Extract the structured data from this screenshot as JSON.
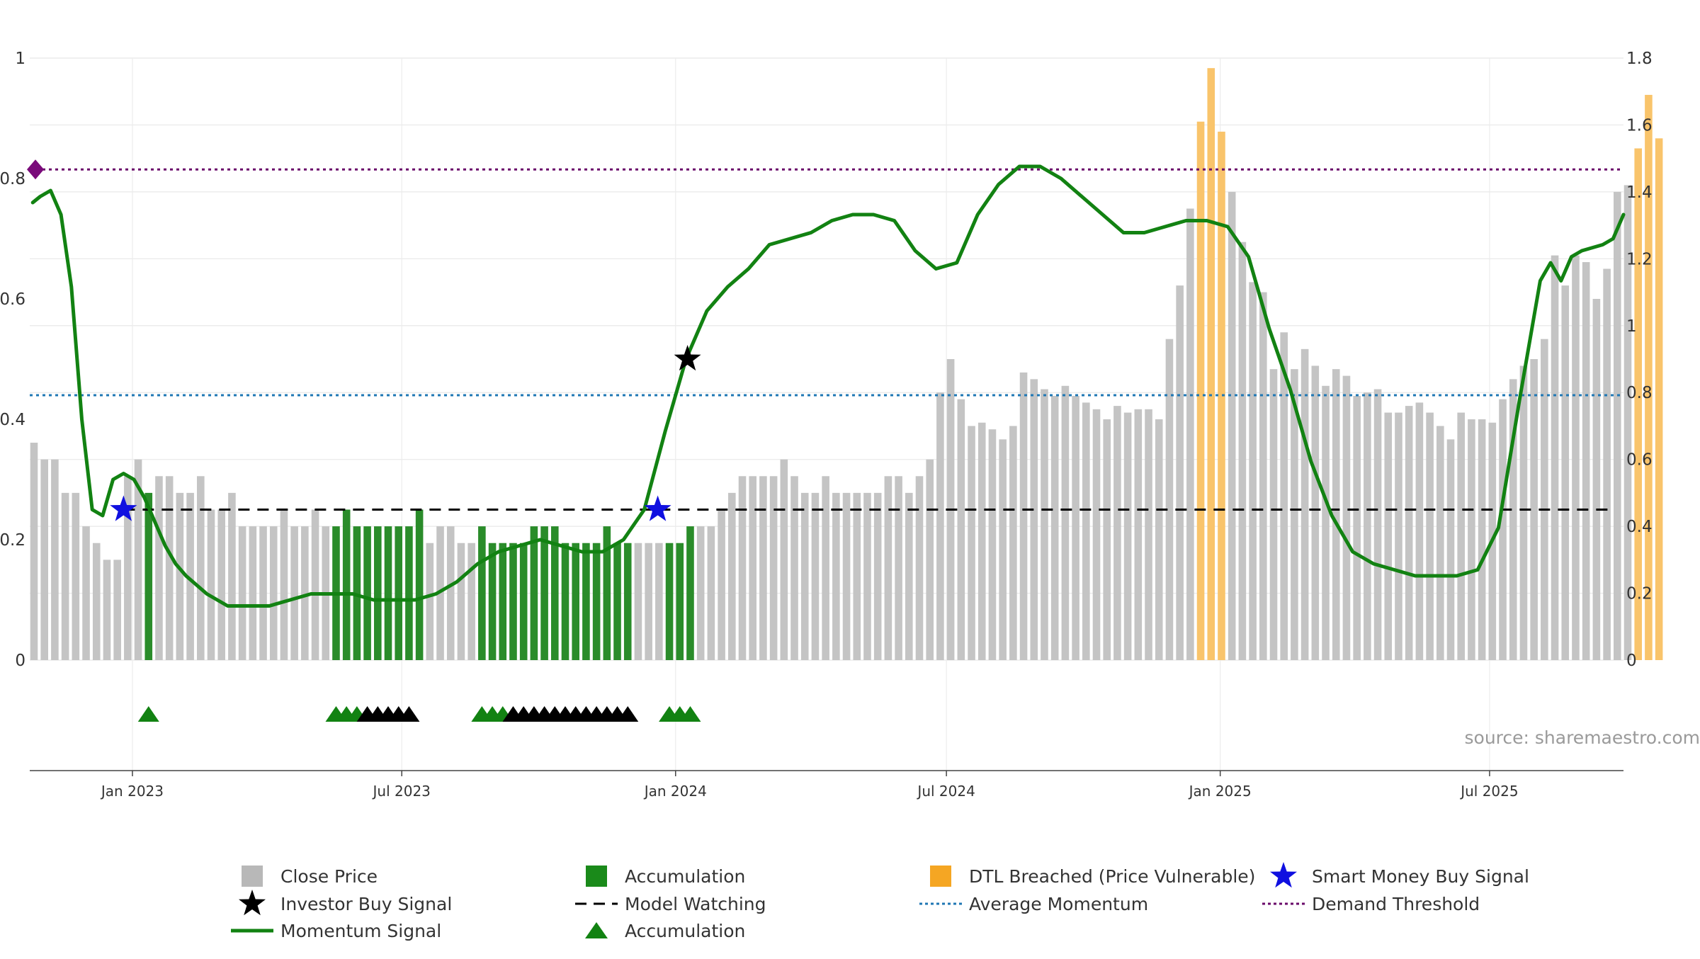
{
  "chart_data": {
    "type": "bar+line",
    "title": "",
    "source": "source: sharemaestro.com",
    "left_axis": {
      "ylim": [
        0,
        1
      ],
      "ticks": [
        0,
        0.2,
        0.4,
        0.6,
        0.8,
        1
      ],
      "tick_labels": [
        "0",
        "0.2",
        "0.4",
        "0.6",
        "0.8",
        "1"
      ]
    },
    "right_axis": {
      "ylim": [
        0,
        1.8
      ],
      "ticks": [
        0,
        0.2,
        0.4,
        0.6,
        0.8,
        1,
        1.2,
        1.4,
        1.6,
        1.8
      ],
      "tick_labels": [
        "0",
        "0.2",
        "0.4",
        "0.6",
        "0.8",
        "1",
        "1.2",
        "1.4",
        "1.6",
        "1.8"
      ]
    },
    "x_axis": {
      "start": "2022-10-24",
      "end": "2025-09-29",
      "tick_dates": [
        "2023-01-01",
        "2023-07-01",
        "2024-01-01",
        "2024-07-01",
        "2025-01-01",
        "2025-07-01"
      ],
      "tick_labels": [
        "Jan 2023",
        "Jul 2023",
        "Jan 2024",
        "Jul 2024",
        "Jan 2025",
        "Jul 2025"
      ]
    },
    "bar_start": "2022-10-24",
    "bar_interval_days": 7,
    "close_price": [
      0.65,
      0.6,
      0.6,
      0.5,
      0.5,
      0.4,
      0.35,
      0.3,
      0.3,
      0.55,
      0.6,
      0.5,
      0.55,
      0.55,
      0.5,
      0.5,
      0.55,
      0.45,
      0.45,
      0.5,
      0.4,
      0.4,
      0.4,
      0.4,
      0.45,
      0.4,
      0.4,
      0.45,
      0.4,
      0.4,
      0.45,
      0.4,
      0.4,
      0.4,
      0.4,
      0.4,
      0.4,
      0.45,
      0.35,
      0.4,
      0.4,
      0.35,
      0.35,
      0.4,
      0.35,
      0.35,
      0.35,
      0.35,
      0.4,
      0.4,
      0.4,
      0.35,
      0.35,
      0.35,
      0.35,
      0.4,
      0.35,
      0.35,
      0.35,
      0.35,
      0.35,
      0.35,
      0.35,
      0.4,
      0.4,
      0.4,
      0.45,
      0.5,
      0.55,
      0.55,
      0.55,
      0.55,
      0.6,
      0.55,
      0.5,
      0.5,
      0.55,
      0.5,
      0.5,
      0.5,
      0.5,
      0.5,
      0.55,
      0.55,
      0.5,
      0.55,
      0.6,
      0.8,
      0.9,
      0.78,
      0.7,
      0.71,
      0.69,
      0.66,
      0.7,
      0.86,
      0.84,
      0.81,
      0.79,
      0.82,
      0.79,
      0.77,
      0.75,
      0.72,
      0.76,
      0.74,
      0.75,
      0.75,
      0.72,
      0.96,
      1.12,
      1.35,
      1.61,
      1.77,
      1.58,
      1.4,
      1.25,
      1.13,
      1.1,
      0.87,
      0.98,
      0.87,
      0.93,
      0.88,
      0.82,
      0.87,
      0.85,
      0.79,
      0.8,
      0.81,
      0.74,
      0.74,
      0.76,
      0.77,
      0.74,
      0.7,
      0.66,
      0.74,
      0.72,
      0.72,
      0.71,
      0.78,
      0.84,
      0.88,
      0.9,
      0.96,
      1.21,
      1.12,
      1.21,
      1.19,
      1.08,
      1.17,
      1.4,
      1.42,
      1.53,
      1.69,
      1.56
    ],
    "accumulation_weeks": [
      11,
      29,
      30,
      31,
      32,
      33,
      34,
      35,
      36,
      37,
      43,
      44,
      45,
      46,
      47,
      48,
      49,
      50,
      51,
      52,
      53,
      54,
      55,
      56,
      57,
      61,
      62,
      63
    ],
    "dtl_breached_weeks": [
      112,
      113,
      114,
      154,
      155,
      156
    ],
    "momentum_signal": {
      "dates": [
        "2022-10-26",
        "2022-10-31",
        "2022-11-07",
        "2022-11-14",
        "2022-11-21",
        "2022-11-28",
        "2022-12-05",
        "2022-12-12",
        "2022-12-19",
        "2022-12-26",
        "2023-01-02",
        "2023-01-09",
        "2023-01-16",
        "2023-01-23",
        "2023-01-30",
        "2023-02-06",
        "2023-02-20",
        "2023-03-06",
        "2023-03-20",
        "2023-04-03",
        "2023-04-17",
        "2023-05-01",
        "2023-05-15",
        "2023-05-29",
        "2023-06-12",
        "2023-06-26",
        "2023-07-10",
        "2023-07-24",
        "2023-08-07",
        "2023-08-21",
        "2023-09-04",
        "2023-09-18",
        "2023-10-02",
        "2023-10-16",
        "2023-10-30",
        "2023-11-13",
        "2023-11-27",
        "2023-12-11",
        "2023-12-25",
        "2024-01-08",
        "2024-01-22",
        "2024-02-05",
        "2024-02-19",
        "2024-03-04",
        "2024-03-18",
        "2024-04-01",
        "2024-04-15",
        "2024-04-29",
        "2024-05-13",
        "2024-05-27",
        "2024-06-10",
        "2024-06-24",
        "2024-07-08",
        "2024-07-22",
        "2024-08-05",
        "2024-08-19",
        "2024-09-02",
        "2024-09-16",
        "2024-09-30",
        "2024-10-14",
        "2024-10-28",
        "2024-11-11",
        "2024-11-25",
        "2024-12-09",
        "2024-12-23",
        "2025-01-06",
        "2025-01-20",
        "2025-02-03",
        "2025-02-17",
        "2025-03-03",
        "2025-03-17",
        "2025-03-31",
        "2025-04-14",
        "2025-04-28",
        "2025-05-12",
        "2025-05-26",
        "2025-06-09",
        "2025-06-23",
        "2025-07-07",
        "2025-07-21",
        "2025-08-04",
        "2025-08-11",
        "2025-08-18",
        "2025-08-25",
        "2025-09-01",
        "2025-09-15",
        "2025-09-22",
        "2025-09-29"
      ],
      "values": [
        0.76,
        0.77,
        0.78,
        0.74,
        0.62,
        0.4,
        0.25,
        0.24,
        0.3,
        0.31,
        0.3,
        0.27,
        0.23,
        0.19,
        0.16,
        0.14,
        0.11,
        0.09,
        0.09,
        0.09,
        0.1,
        0.11,
        0.11,
        0.11,
        0.1,
        0.1,
        0.1,
        0.11,
        0.13,
        0.16,
        0.18,
        0.19,
        0.2,
        0.19,
        0.18,
        0.18,
        0.2,
        0.25,
        0.38,
        0.5,
        0.58,
        0.62,
        0.65,
        0.69,
        0.7,
        0.71,
        0.73,
        0.74,
        0.74,
        0.73,
        0.68,
        0.65,
        0.66,
        0.74,
        0.79,
        0.82,
        0.82,
        0.8,
        0.77,
        0.74,
        0.71,
        0.71,
        0.72,
        0.73,
        0.73,
        0.72,
        0.67,
        0.55,
        0.45,
        0.33,
        0.24,
        0.18,
        0.16,
        0.15,
        0.14,
        0.14,
        0.14,
        0.15,
        0.22,
        0.43,
        0.63,
        0.66,
        0.63,
        0.67,
        0.68,
        0.69,
        0.7,
        0.74
      ]
    },
    "average_momentum": 0.44,
    "demand_threshold": 0.815,
    "model_watching": 0.25,
    "demand_threshold_marker_value": 0.815,
    "investor_buy_signals": [
      {
        "date": "2024-01-09",
        "value": 0.5
      }
    ],
    "smart_money_buy_signals": [
      {
        "date": "2022-12-26",
        "value": 0.25
      },
      {
        "date": "2023-12-20",
        "value": 0.25
      }
    ],
    "accumulation_markers_green_weeks": [
      11,
      29,
      30,
      31,
      43,
      44,
      45,
      61,
      62,
      63
    ],
    "accumulation_markers_black_weeks": [
      32,
      33,
      34,
      35,
      36,
      46,
      47,
      48,
      49,
      50,
      51,
      52,
      53,
      54,
      55,
      56,
      57
    ],
    "legend": [
      {
        "key": "close_price",
        "label": "Close Price",
        "symbol": "square",
        "color": "#b8b8b8"
      },
      {
        "key": "accumulation_bar",
        "label": "Accumulation",
        "symbol": "square",
        "color": "#1a8a1a"
      },
      {
        "key": "dtl",
        "label": "DTL Breached (Price Vulnerable)",
        "symbol": "square",
        "color": "#f5a623"
      },
      {
        "key": "smart_money",
        "label": "Smart Money Buy Signal",
        "symbol": "star",
        "color": "#1010e0"
      },
      {
        "key": "investor_buy",
        "label": "Investor Buy Signal",
        "symbol": "star",
        "color": "#000000"
      },
      {
        "key": "model_watching",
        "label": "Model Watching",
        "symbol": "dash",
        "color": "#000000"
      },
      {
        "key": "avg_momentum",
        "label": "Average Momentum",
        "symbol": "dot",
        "color": "#1f77b4"
      },
      {
        "key": "demand_threshold",
        "label": "Demand Threshold",
        "symbol": "dot",
        "color": "#6a0a6a"
      },
      {
        "key": "momentum",
        "label": "Momentum Signal",
        "symbol": "line",
        "color": "#128212"
      },
      {
        "key": "accumulation_marker",
        "label": "Accumulation",
        "symbol": "triangle",
        "color": "#128212"
      }
    ],
    "colors": {
      "close_price": "#c4c4c4",
      "accumulation": "#2a8c2a",
      "dtl": "#f9c46b",
      "momentum": "#128212",
      "average_momentum": "#1f77b4",
      "demand_threshold": "#6a0a6a",
      "model_watching": "#000000",
      "smart_money": "#1010e0",
      "investor_buy": "#000000"
    }
  }
}
